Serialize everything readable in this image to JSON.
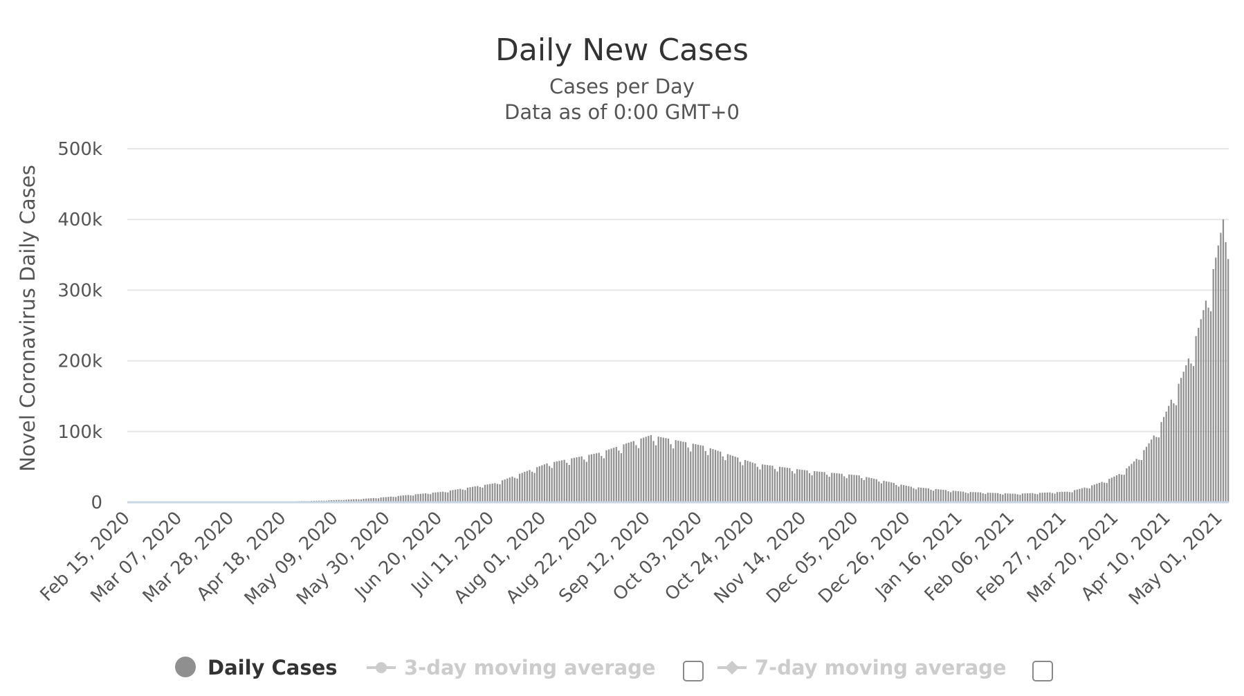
{
  "chart_data": {
    "type": "bar",
    "title": "Daily New Cases",
    "subtitle_lines": [
      "Cases per Day",
      "Data as of 0:00 GMT+0"
    ],
    "ylabel": "Novel Coronavirus Daily Cases",
    "ylim": [
      0,
      500000
    ],
    "yticks": [
      {
        "value": 0,
        "label": "0"
      },
      {
        "value": 100000,
        "label": "100k"
      },
      {
        "value": 200000,
        "label": "200k"
      },
      {
        "value": 300000,
        "label": "300k"
      },
      {
        "value": 400000,
        "label": "400k"
      },
      {
        "value": 500000,
        "label": "500k"
      }
    ],
    "xticks": [
      "Feb 15, 2020",
      "Mar 07, 2020",
      "Mar 28, 2020",
      "Apr 18, 2020",
      "May 09, 2020",
      "May 30, 2020",
      "Jun 20, 2020",
      "Jul 11, 2020",
      "Aug 01, 2020",
      "Aug 22, 2020",
      "Sep 12, 2020",
      "Oct 03, 2020",
      "Oct 24, 2020",
      "Nov 14, 2020",
      "Dec 05, 2020",
      "Dec 26, 2020",
      "Jan 16, 2021",
      "Feb 06, 2021",
      "Feb 27, 2021",
      "Mar 20, 2021",
      "Apr 10, 2021",
      "May 01, 2021"
    ],
    "grid": true,
    "bar_color": "#8f8f8f",
    "series": [
      {
        "name": "Daily Cases",
        "color": "#8f8f8f",
        "points": [
          {
            "x": "2020-02-15",
            "y": 0
          },
          {
            "x": "2020-03-07",
            "y": 30
          },
          {
            "x": "2020-03-28",
            "y": 300
          },
          {
            "x": "2020-04-18",
            "y": 1300
          },
          {
            "x": "2020-05-09",
            "y": 3300
          },
          {
            "x": "2020-05-30",
            "y": 8000
          },
          {
            "x": "2020-06-20",
            "y": 15000
          },
          {
            "x": "2020-07-11",
            "y": 27000
          },
          {
            "x": "2020-08-01",
            "y": 55000
          },
          {
            "x": "2020-08-22",
            "y": 70000
          },
          {
            "x": "2020-09-12",
            "y": 95000
          },
          {
            "x": "2020-10-03",
            "y": 80000
          },
          {
            "x": "2020-10-24",
            "y": 55000
          },
          {
            "x": "2020-11-14",
            "y": 45000
          },
          {
            "x": "2020-12-05",
            "y": 38000
          },
          {
            "x": "2020-12-26",
            "y": 22000
          },
          {
            "x": "2021-01-16",
            "y": 15000
          },
          {
            "x": "2021-02-06",
            "y": 12000
          },
          {
            "x": "2021-02-27",
            "y": 15000
          },
          {
            "x": "2021-03-20",
            "y": 40000
          },
          {
            "x": "2021-04-10",
            "y": 145000
          },
          {
            "x": "2021-05-01",
            "y": 400000
          }
        ]
      }
    ],
    "legend": {
      "placement": "bottom",
      "items": [
        {
          "label": "Daily Cases",
          "active": true,
          "marker": "circle"
        },
        {
          "label": "3-day moving average",
          "active": false,
          "marker": "line-circle",
          "checkbox": true
        },
        {
          "label": "7-day moving average",
          "active": false,
          "marker": "line-diamond",
          "checkbox": true
        }
      ]
    }
  }
}
